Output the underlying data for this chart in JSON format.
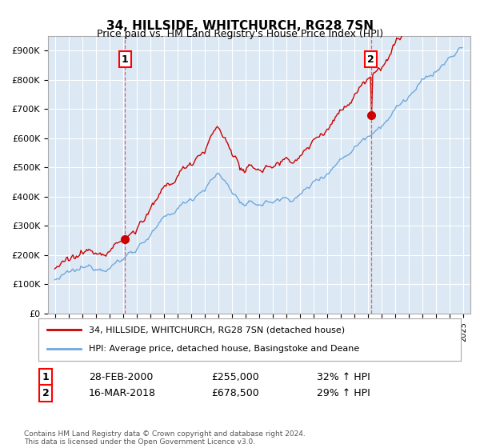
{
  "title": "34, HILLSIDE, WHITCHURCH, RG28 7SN",
  "subtitle": "Price paid vs. HM Land Registry's House Price Index (HPI)",
  "legend_line1": "34, HILLSIDE, WHITCHURCH, RG28 7SN (detached house)",
  "legend_line2": "HPI: Average price, detached house, Basingstoke and Deane",
  "sale1_label": "1",
  "sale1_date": "28-FEB-2000",
  "sale1_price": "£255,000",
  "sale1_hpi": "32% ↑ HPI",
  "sale1_year": 2000.15,
  "sale1_value": 255000,
  "sale2_label": "2",
  "sale2_date": "16-MAR-2018",
  "sale2_price": "£678,500",
  "sale2_hpi": "29% ↑ HPI",
  "sale2_year": 2018.21,
  "sale2_value": 678500,
  "ylim": [
    0,
    950000
  ],
  "xlim_start": 1994.5,
  "xlim_end": 2025.5,
  "yticks": [
    0,
    100000,
    200000,
    300000,
    400000,
    500000,
    600000,
    700000,
    800000,
    900000
  ],
  "ytick_labels": [
    "£0",
    "£100K",
    "£200K",
    "£300K",
    "£400K",
    "£500K",
    "£600K",
    "£700K",
    "£800K",
    "£900K"
  ],
  "hpi_color": "#6fa8dc",
  "price_color": "#cc0000",
  "vline_color": "#e06060",
  "background_color": "#ffffff",
  "plot_bg_color": "#dce9f5",
  "grid_color": "#ffffff",
  "footnote": "Contains HM Land Registry data © Crown copyright and database right 2024.\nThis data is licensed under the Open Government Licence v3.0."
}
